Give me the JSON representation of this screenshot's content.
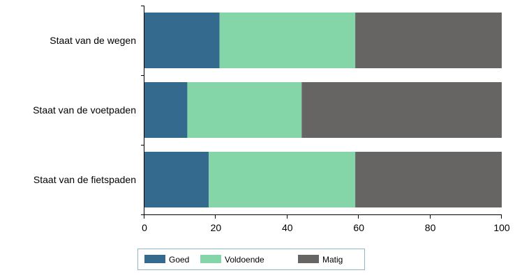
{
  "chart_data": {
    "type": "bar",
    "orientation": "horizontal",
    "stacked": true,
    "categories": [
      "Staat van de wegen",
      "Staat van de voetpaden",
      "Staat van de fietspaden"
    ],
    "series": [
      {
        "name": "Goed",
        "color": "#336a8e",
        "values": [
          21,
          12,
          18
        ]
      },
      {
        "name": "Voldoende",
        "color": "#84d6a9",
        "values": [
          38,
          32,
          41
        ]
      },
      {
        "name": "Matig",
        "color": "#666564",
        "values": [
          41,
          56,
          41
        ]
      }
    ],
    "xlim": [
      0,
      100
    ],
    "xticks": [
      0,
      20,
      40,
      60,
      80,
      100
    ],
    "grid": false,
    "legend": {
      "position": "bottom-center"
    }
  }
}
